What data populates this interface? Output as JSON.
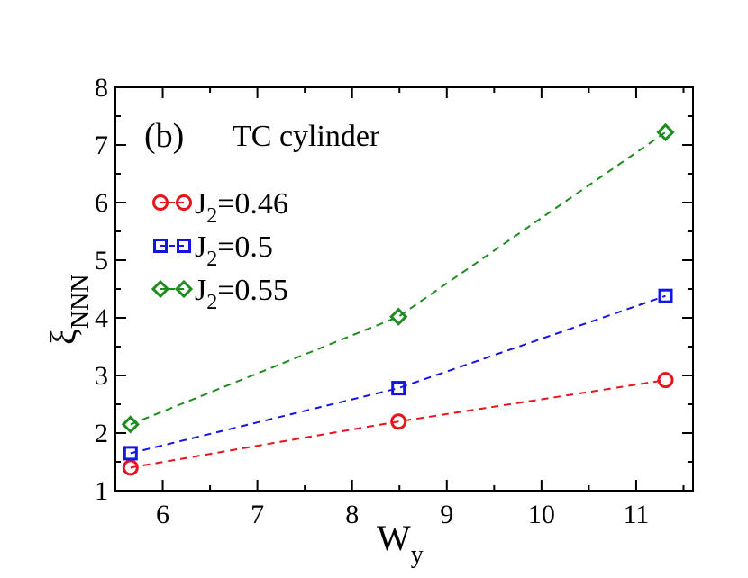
{
  "chart_data": {
    "type": "line",
    "panel_label": "(b)",
    "title": "TC cylinder",
    "xlabel": {
      "main": "W",
      "sub": "y"
    },
    "ylabel": {
      "main": "ξ",
      "sub": "NNN"
    },
    "xlim": [
      5.5,
      11.6
    ],
    "ylim": [
      1,
      8
    ],
    "xticks": [
      6,
      7,
      8,
      9,
      10,
      11
    ],
    "yticks": [
      1,
      2,
      3,
      4,
      5,
      6,
      7,
      8
    ],
    "x": [
      5.66,
      8.49,
      11.31
    ],
    "series": [
      {
        "name": "J2=0.46",
        "label_main": "J",
        "label_sub": "2",
        "label_rest": "=0.46",
        "color": "#e8141b",
        "marker": "circle",
        "values": [
          1.4,
          2.2,
          2.92
        ]
      },
      {
        "name": "J2=0.5",
        "label_main": "J",
        "label_sub": "2",
        "label_rest": "=0.5",
        "color": "#1414e6",
        "marker": "square",
        "values": [
          1.65,
          2.78,
          4.38
        ]
      },
      {
        "name": "J2=0.55",
        "label_main": "J",
        "label_sub": "2",
        "label_rest": "=0.55",
        "color": "#1e8c1e",
        "marker": "diamond",
        "values": [
          2.15,
          4.02,
          7.22
        ]
      }
    ],
    "line_style": "dashed",
    "legend_position": "top-left"
  }
}
